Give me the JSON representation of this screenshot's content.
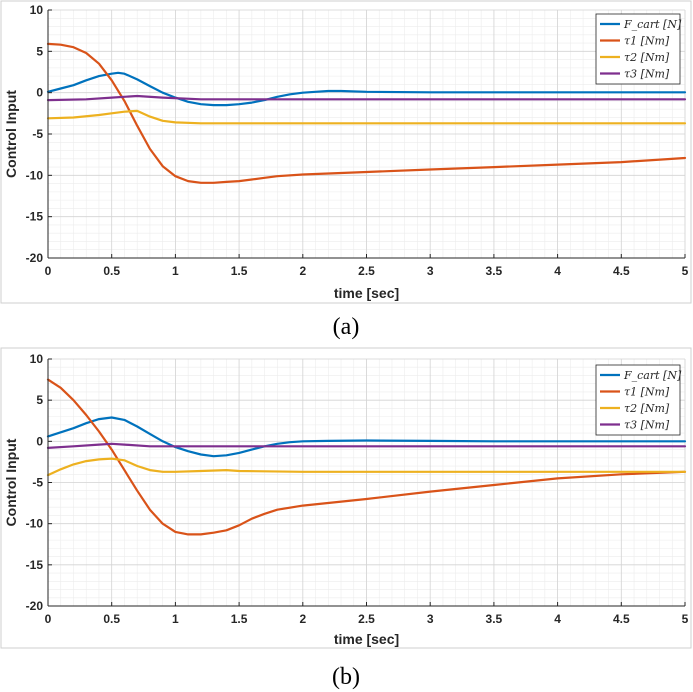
{
  "colors": {
    "F_cart": "#0072BD",
    "tau1": "#D95319",
    "tau2": "#EDB120",
    "tau3": "#7E2F8E",
    "grid_minor": "#ececec",
    "grid_major": "#d4d4d4"
  },
  "chart_data": [
    {
      "type": "line",
      "caption": "(a)",
      "xlabel": "time [sec]",
      "ylabel": "Control Input",
      "xlim": [
        0,
        5
      ],
      "ylim": [
        -20,
        10
      ],
      "xticks": [
        "0",
        "0.5",
        "1",
        "1.5",
        "2",
        "2.5",
        "3",
        "3.5",
        "4",
        "4.5",
        "5"
      ],
      "yticks": [
        "10",
        "5",
        "0",
        "-5",
        "-10",
        "-15",
        "-20"
      ],
      "grid": "on (major and minor)",
      "legend_position": "top-right",
      "series": [
        {
          "name": "F_cart [N]",
          "color_key": "F_cart",
          "x": [
            0,
            0.1,
            0.2,
            0.3,
            0.4,
            0.5,
            0.55,
            0.6,
            0.7,
            0.8,
            0.9,
            1.0,
            1.1,
            1.2,
            1.3,
            1.4,
            1.5,
            1.6,
            1.7,
            1.8,
            1.9,
            2.0,
            2.1,
            2.2,
            2.3,
            2.5,
            3.0,
            3.5,
            4.0,
            4.5,
            5.0
          ],
          "y": [
            0.1,
            0.5,
            0.9,
            1.5,
            2.0,
            2.3,
            2.4,
            2.3,
            1.6,
            0.8,
            0.0,
            -0.6,
            -1.1,
            -1.4,
            -1.5,
            -1.5,
            -1.4,
            -1.2,
            -0.9,
            -0.5,
            -0.2,
            0.0,
            0.1,
            0.2,
            0.2,
            0.1,
            0.05,
            0.05,
            0.05,
            0.05,
            0.05
          ]
        },
        {
          "name": "τ1 [Nm]",
          "color_key": "tau1",
          "x": [
            0,
            0.1,
            0.2,
            0.3,
            0.4,
            0.5,
            0.6,
            0.7,
            0.8,
            0.9,
            1.0,
            1.1,
            1.2,
            1.3,
            1.4,
            1.5,
            1.6,
            1.7,
            1.8,
            2.0,
            2.5,
            3.0,
            3.5,
            4.0,
            4.5,
            5.0
          ],
          "y": [
            5.9,
            5.8,
            5.5,
            4.8,
            3.5,
            1.5,
            -1.0,
            -4.0,
            -6.8,
            -8.9,
            -10.1,
            -10.7,
            -10.9,
            -10.9,
            -10.8,
            -10.7,
            -10.5,
            -10.3,
            -10.1,
            -9.9,
            -9.6,
            -9.3,
            -9.0,
            -8.7,
            -8.4,
            -7.9
          ]
        },
        {
          "name": "τ2 [Nm]",
          "color_key": "tau2",
          "x": [
            0,
            0.2,
            0.4,
            0.5,
            0.6,
            0.7,
            0.8,
            0.9,
            1.0,
            1.2,
            1.5,
            2.0,
            3.0,
            4.0,
            5.0
          ],
          "y": [
            -3.1,
            -3.0,
            -2.7,
            -2.5,
            -2.3,
            -2.2,
            -2.9,
            -3.4,
            -3.6,
            -3.7,
            -3.7,
            -3.7,
            -3.7,
            -3.7,
            -3.7
          ]
        },
        {
          "name": "τ3 [Nm]",
          "color_key": "tau3",
          "x": [
            0,
            0.3,
            0.5,
            0.7,
            0.9,
            1.2,
            2.0,
            3.0,
            4.0,
            5.0
          ],
          "y": [
            -0.9,
            -0.8,
            -0.6,
            -0.4,
            -0.6,
            -0.8,
            -0.8,
            -0.8,
            -0.8,
            -0.8
          ]
        }
      ]
    },
    {
      "type": "line",
      "caption": "(b)",
      "xlabel": "time [sec]",
      "ylabel": "Control Input",
      "xlim": [
        0,
        5
      ],
      "ylim": [
        -20,
        10
      ],
      "xticks": [
        "0",
        "0.5",
        "1",
        "1.5",
        "2",
        "2.5",
        "3",
        "3.5",
        "4",
        "4.5",
        "5"
      ],
      "yticks": [
        "10",
        "5",
        "0",
        "-5",
        "-10",
        "-15",
        "-20"
      ],
      "grid": "on (major and minor)",
      "legend_position": "top-right",
      "series": [
        {
          "name": "F_cart [N]",
          "color_key": "F_cart",
          "x": [
            0,
            0.1,
            0.2,
            0.3,
            0.4,
            0.5,
            0.6,
            0.7,
            0.8,
            0.9,
            1.0,
            1.1,
            1.2,
            1.3,
            1.4,
            1.5,
            1.6,
            1.7,
            1.8,
            1.9,
            2.0,
            2.2,
            2.5,
            3.0,
            3.5,
            4.0,
            4.5,
            5.0
          ],
          "y": [
            0.6,
            1.1,
            1.6,
            2.2,
            2.7,
            2.9,
            2.6,
            1.8,
            0.9,
            0.0,
            -0.7,
            -1.2,
            -1.6,
            -1.8,
            -1.7,
            -1.4,
            -1.0,
            -0.6,
            -0.3,
            -0.1,
            0.0,
            0.05,
            0.1,
            0.05,
            0.0,
            0.0,
            0.0,
            0.0
          ]
        },
        {
          "name": "τ1 [Nm]",
          "color_key": "tau1",
          "x": [
            0,
            0.1,
            0.2,
            0.3,
            0.4,
            0.5,
            0.6,
            0.7,
            0.8,
            0.9,
            1.0,
            1.1,
            1.2,
            1.3,
            1.4,
            1.5,
            1.6,
            1.7,
            1.8,
            2.0,
            2.5,
            3.0,
            3.5,
            4.0,
            4.5,
            5.0
          ],
          "y": [
            7.5,
            6.5,
            5.0,
            3.2,
            1.2,
            -1.0,
            -3.5,
            -6.0,
            -8.3,
            -10.0,
            -11.0,
            -11.3,
            -11.3,
            -11.1,
            -10.8,
            -10.2,
            -9.4,
            -8.8,
            -8.3,
            -7.8,
            -7.0,
            -6.1,
            -5.3,
            -4.5,
            -4.0,
            -3.7
          ]
        },
        {
          "name": "τ2 [Nm]",
          "color_key": "tau2",
          "x": [
            0,
            0.1,
            0.2,
            0.3,
            0.4,
            0.5,
            0.6,
            0.7,
            0.8,
            0.9,
            1.0,
            1.2,
            1.4,
            1.5,
            2.0,
            3.0,
            4.0,
            5.0
          ],
          "y": [
            -4.1,
            -3.4,
            -2.8,
            -2.4,
            -2.2,
            -2.1,
            -2.3,
            -3.0,
            -3.5,
            -3.7,
            -3.7,
            -3.6,
            -3.5,
            -3.6,
            -3.7,
            -3.7,
            -3.7,
            -3.7
          ]
        },
        {
          "name": "τ3 [Nm]",
          "color_key": "tau3",
          "x": [
            0,
            0.2,
            0.4,
            0.5,
            0.6,
            0.8,
            1.0,
            1.5,
            2.0,
            3.0,
            4.0,
            5.0
          ],
          "y": [
            -0.8,
            -0.6,
            -0.4,
            -0.3,
            -0.4,
            -0.6,
            -0.6,
            -0.6,
            -0.6,
            -0.6,
            -0.6,
            -0.6
          ]
        }
      ]
    }
  ]
}
